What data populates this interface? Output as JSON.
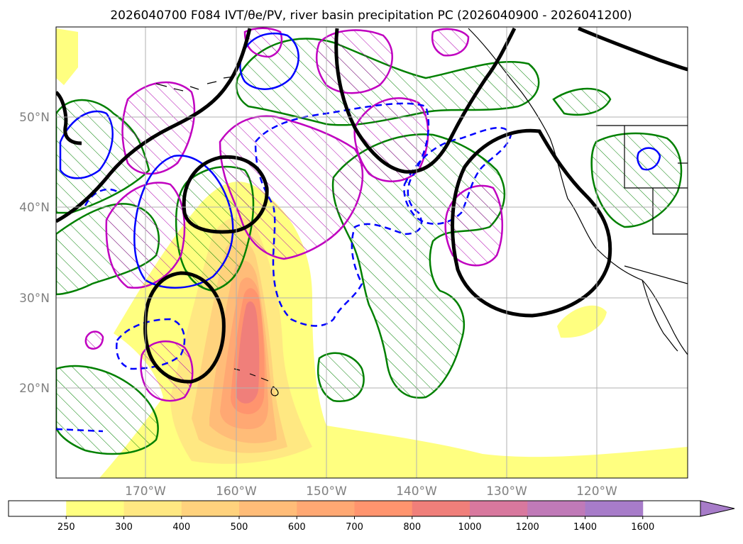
{
  "title": "2026040700 F084 IVT/θe/PV, river basin precipitation PC (2026040900 - 2026041200)",
  "map": {
    "lat_labels": [
      "50°N",
      "40°N",
      "30°N",
      "20°N"
    ],
    "lon_labels": [
      "170°W",
      "160°W",
      "150°W",
      "140°W",
      "130°W",
      "120°W"
    ]
  },
  "colorbar": {
    "ticks": [
      "250",
      "300",
      "400",
      "500",
      "600",
      "700",
      "800",
      "1000",
      "1200",
      "1400",
      "1600"
    ],
    "colors": [
      "#ffffff",
      "#ffff80",
      "#ffe882",
      "#ffd27d",
      "#ffbc78",
      "#ffa873",
      "#ff946e",
      "#f07f7a",
      "#d8789e",
      "#c07ab8",
      "#a77cc9"
    ]
  },
  "contour_colors": {
    "ivt_fill": "#ffff80",
    "green_hatch": "#008000",
    "magenta_hatch": "#c000c0",
    "blue": "#0000ff",
    "black": "#000000"
  }
}
